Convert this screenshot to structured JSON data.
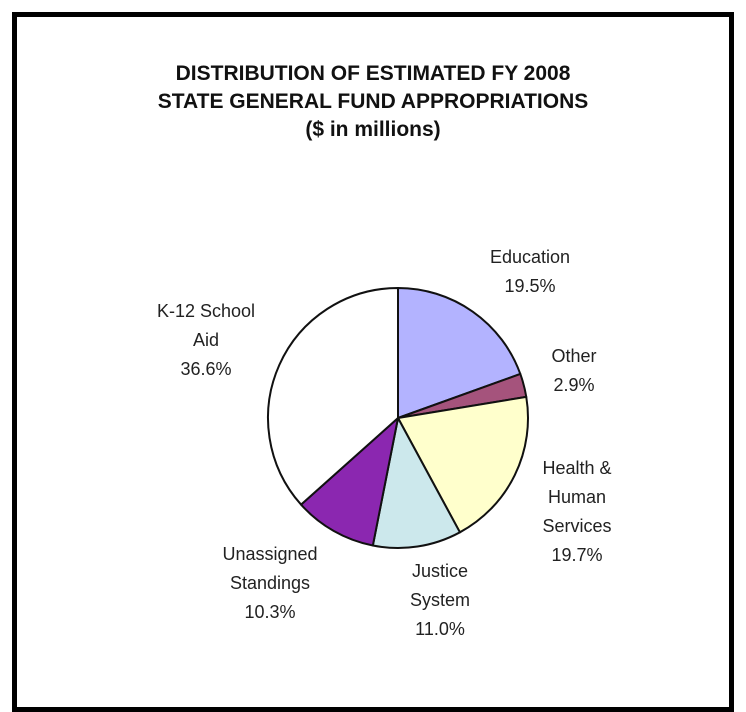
{
  "title": {
    "line1": "DISTRIBUTION OF ESTIMATED FY 2008",
    "line2": "STATE GENERAL FUND APPROPRIATIONS",
    "line3": "($ in millions)"
  },
  "chart_data": {
    "type": "pie",
    "title": "DISTRIBUTION OF ESTIMATED FY 2008 STATE GENERAL FUND APPROPRIATIONS",
    "subtitle": "($ in millions)",
    "start_angle_deg": 0,
    "direction": "clockwise",
    "slices": [
      {
        "label_lines": [
          "Education",
          "19.5%"
        ],
        "value": 19.5,
        "color": "#b3b3ff"
      },
      {
        "label_lines": [
          "Other",
          "2.9%"
        ],
        "value": 2.9,
        "color": "#a5537c"
      },
      {
        "label_lines": [
          "Health &",
          "Human",
          "Services",
          "19.7%"
        ],
        "value": 19.7,
        "color": "#ffffcc"
      },
      {
        "label_lines": [
          "Justice",
          "System",
          "11.0%"
        ],
        "value": 11.0,
        "color": "#cce8ec"
      },
      {
        "label_lines": [
          "Unassigned",
          "Standings",
          "10.3%"
        ],
        "value": 10.3,
        "color": "#8b27b0"
      },
      {
        "label_lines": [
          "K-12 School",
          "Aid",
          "36.6%"
        ],
        "value": 36.6,
        "color": "#ffffff"
      }
    ]
  }
}
